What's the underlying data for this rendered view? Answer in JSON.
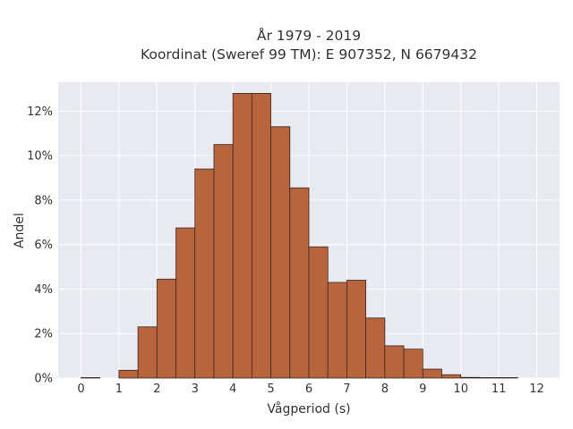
{
  "chart_data": {
    "type": "bar",
    "title_lines": [
      "År 1979 - 2019",
      "Koordinat (Sweref 99 TM): E 907352, N 6679432"
    ],
    "xlabel": "Vågperiod (s)",
    "ylabel": "Andel",
    "x_ticks": [
      0,
      1,
      2,
      3,
      4,
      5,
      6,
      7,
      8,
      9,
      10,
      11,
      12
    ],
    "x_tick_labels": [
      "0",
      "1",
      "2",
      "3",
      "4",
      "5",
      "6",
      "7",
      "8",
      "9",
      "10",
      "11",
      "12"
    ],
    "y_ticks": [
      0,
      2,
      4,
      6,
      8,
      10,
      12
    ],
    "y_tick_labels": [
      "0%",
      "2%",
      "4%",
      "6%",
      "8%",
      "10%",
      "12%"
    ],
    "xlim": [
      -0.6,
      12.6
    ],
    "ylim": [
      0,
      13.3
    ],
    "bin_width": 0.5,
    "bins": [
      {
        "x": 0.0,
        "value": 0.02
      },
      {
        "x": 0.5,
        "value": 0.0
      },
      {
        "x": 1.0,
        "value": 0.35
      },
      {
        "x": 1.5,
        "value": 2.3
      },
      {
        "x": 2.0,
        "value": 4.45
      },
      {
        "x": 2.5,
        "value": 6.75
      },
      {
        "x": 3.0,
        "value": 9.4
      },
      {
        "x": 3.5,
        "value": 10.5
      },
      {
        "x": 4.0,
        "value": 12.8
      },
      {
        "x": 4.5,
        "value": 12.8
      },
      {
        "x": 5.0,
        "value": 11.3
      },
      {
        "x": 5.5,
        "value": 8.55
      },
      {
        "x": 6.0,
        "value": 5.9
      },
      {
        "x": 6.5,
        "value": 4.3
      },
      {
        "x": 7.0,
        "value": 4.4
      },
      {
        "x": 7.5,
        "value": 2.7
      },
      {
        "x": 8.0,
        "value": 1.45
      },
      {
        "x": 8.5,
        "value": 1.3
      },
      {
        "x": 9.0,
        "value": 0.4
      },
      {
        "x": 9.5,
        "value": 0.15
      },
      {
        "x": 10.0,
        "value": 0.03
      },
      {
        "x": 10.5,
        "value": 0.02
      },
      {
        "x": 11.0,
        "value": 0.02
      }
    ],
    "bar_color": "#b8653e",
    "plot_background": "#e9e9f1",
    "grid": true
  }
}
